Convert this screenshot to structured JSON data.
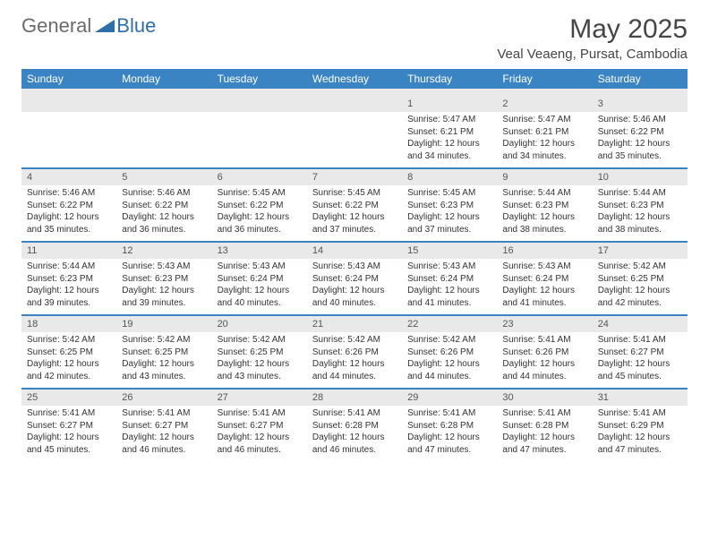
{
  "brand": {
    "part1": "General",
    "part2": "Blue"
  },
  "title": "May 2025",
  "location": "Veal Veaeng, Pursat, Cambodia",
  "colors": {
    "header_bg": "#3b84c4",
    "header_text": "#ffffff",
    "daynum_bg": "#e9e9e9",
    "body_text": "#333333",
    "title_text": "#454545",
    "logo_gray": "#6b6b6b",
    "logo_blue": "#2f6fa8",
    "page_bg": "#ffffff"
  },
  "day_headers": [
    "Sunday",
    "Monday",
    "Tuesday",
    "Wednesday",
    "Thursday",
    "Friday",
    "Saturday"
  ],
  "weeks": [
    [
      {
        "n": "",
        "sr": "",
        "ss": "",
        "dl": ""
      },
      {
        "n": "",
        "sr": "",
        "ss": "",
        "dl": ""
      },
      {
        "n": "",
        "sr": "",
        "ss": "",
        "dl": ""
      },
      {
        "n": "",
        "sr": "",
        "ss": "",
        "dl": ""
      },
      {
        "n": "1",
        "sr": "Sunrise: 5:47 AM",
        "ss": "Sunset: 6:21 PM",
        "dl": "Daylight: 12 hours and 34 minutes."
      },
      {
        "n": "2",
        "sr": "Sunrise: 5:47 AM",
        "ss": "Sunset: 6:21 PM",
        "dl": "Daylight: 12 hours and 34 minutes."
      },
      {
        "n": "3",
        "sr": "Sunrise: 5:46 AM",
        "ss": "Sunset: 6:22 PM",
        "dl": "Daylight: 12 hours and 35 minutes."
      }
    ],
    [
      {
        "n": "4",
        "sr": "Sunrise: 5:46 AM",
        "ss": "Sunset: 6:22 PM",
        "dl": "Daylight: 12 hours and 35 minutes."
      },
      {
        "n": "5",
        "sr": "Sunrise: 5:46 AM",
        "ss": "Sunset: 6:22 PM",
        "dl": "Daylight: 12 hours and 36 minutes."
      },
      {
        "n": "6",
        "sr": "Sunrise: 5:45 AM",
        "ss": "Sunset: 6:22 PM",
        "dl": "Daylight: 12 hours and 36 minutes."
      },
      {
        "n": "7",
        "sr": "Sunrise: 5:45 AM",
        "ss": "Sunset: 6:22 PM",
        "dl": "Daylight: 12 hours and 37 minutes."
      },
      {
        "n": "8",
        "sr": "Sunrise: 5:45 AM",
        "ss": "Sunset: 6:23 PM",
        "dl": "Daylight: 12 hours and 37 minutes."
      },
      {
        "n": "9",
        "sr": "Sunrise: 5:44 AM",
        "ss": "Sunset: 6:23 PM",
        "dl": "Daylight: 12 hours and 38 minutes."
      },
      {
        "n": "10",
        "sr": "Sunrise: 5:44 AM",
        "ss": "Sunset: 6:23 PM",
        "dl": "Daylight: 12 hours and 38 minutes."
      }
    ],
    [
      {
        "n": "11",
        "sr": "Sunrise: 5:44 AM",
        "ss": "Sunset: 6:23 PM",
        "dl": "Daylight: 12 hours and 39 minutes."
      },
      {
        "n": "12",
        "sr": "Sunrise: 5:43 AM",
        "ss": "Sunset: 6:23 PM",
        "dl": "Daylight: 12 hours and 39 minutes."
      },
      {
        "n": "13",
        "sr": "Sunrise: 5:43 AM",
        "ss": "Sunset: 6:24 PM",
        "dl": "Daylight: 12 hours and 40 minutes."
      },
      {
        "n": "14",
        "sr": "Sunrise: 5:43 AM",
        "ss": "Sunset: 6:24 PM",
        "dl": "Daylight: 12 hours and 40 minutes."
      },
      {
        "n": "15",
        "sr": "Sunrise: 5:43 AM",
        "ss": "Sunset: 6:24 PM",
        "dl": "Daylight: 12 hours and 41 minutes."
      },
      {
        "n": "16",
        "sr": "Sunrise: 5:43 AM",
        "ss": "Sunset: 6:24 PM",
        "dl": "Daylight: 12 hours and 41 minutes."
      },
      {
        "n": "17",
        "sr": "Sunrise: 5:42 AM",
        "ss": "Sunset: 6:25 PM",
        "dl": "Daylight: 12 hours and 42 minutes."
      }
    ],
    [
      {
        "n": "18",
        "sr": "Sunrise: 5:42 AM",
        "ss": "Sunset: 6:25 PM",
        "dl": "Daylight: 12 hours and 42 minutes."
      },
      {
        "n": "19",
        "sr": "Sunrise: 5:42 AM",
        "ss": "Sunset: 6:25 PM",
        "dl": "Daylight: 12 hours and 43 minutes."
      },
      {
        "n": "20",
        "sr": "Sunrise: 5:42 AM",
        "ss": "Sunset: 6:25 PM",
        "dl": "Daylight: 12 hours and 43 minutes."
      },
      {
        "n": "21",
        "sr": "Sunrise: 5:42 AM",
        "ss": "Sunset: 6:26 PM",
        "dl": "Daylight: 12 hours and 44 minutes."
      },
      {
        "n": "22",
        "sr": "Sunrise: 5:42 AM",
        "ss": "Sunset: 6:26 PM",
        "dl": "Daylight: 12 hours and 44 minutes."
      },
      {
        "n": "23",
        "sr": "Sunrise: 5:41 AM",
        "ss": "Sunset: 6:26 PM",
        "dl": "Daylight: 12 hours and 44 minutes."
      },
      {
        "n": "24",
        "sr": "Sunrise: 5:41 AM",
        "ss": "Sunset: 6:27 PM",
        "dl": "Daylight: 12 hours and 45 minutes."
      }
    ],
    [
      {
        "n": "25",
        "sr": "Sunrise: 5:41 AM",
        "ss": "Sunset: 6:27 PM",
        "dl": "Daylight: 12 hours and 45 minutes."
      },
      {
        "n": "26",
        "sr": "Sunrise: 5:41 AM",
        "ss": "Sunset: 6:27 PM",
        "dl": "Daylight: 12 hours and 46 minutes."
      },
      {
        "n": "27",
        "sr": "Sunrise: 5:41 AM",
        "ss": "Sunset: 6:27 PM",
        "dl": "Daylight: 12 hours and 46 minutes."
      },
      {
        "n": "28",
        "sr": "Sunrise: 5:41 AM",
        "ss": "Sunset: 6:28 PM",
        "dl": "Daylight: 12 hours and 46 minutes."
      },
      {
        "n": "29",
        "sr": "Sunrise: 5:41 AM",
        "ss": "Sunset: 6:28 PM",
        "dl": "Daylight: 12 hours and 47 minutes."
      },
      {
        "n": "30",
        "sr": "Sunrise: 5:41 AM",
        "ss": "Sunset: 6:28 PM",
        "dl": "Daylight: 12 hours and 47 minutes."
      },
      {
        "n": "31",
        "sr": "Sunrise: 5:41 AM",
        "ss": "Sunset: 6:29 PM",
        "dl": "Daylight: 12 hours and 47 minutes."
      }
    ]
  ]
}
